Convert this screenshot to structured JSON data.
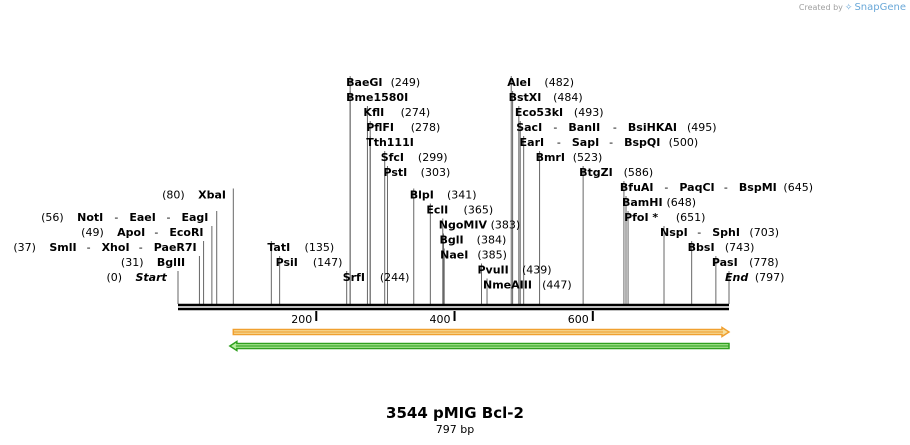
{
  "brand": {
    "created_by": "Created by",
    "name": "SnapGene",
    "logo_icon": "snapgene-logo-icon"
  },
  "title": "3544 pMIG Bcl-2",
  "length_label": "797 bp",
  "sequence": {
    "length": 797,
    "ticks": [
      200,
      400,
      600
    ]
  },
  "features": [
    {
      "name": "orange-feature-arrow",
      "start": 80,
      "end": 797,
      "direction": "forward",
      "color": "#f0a030",
      "fill": "#f7e0a0"
    },
    {
      "name": "green-feature-arrow",
      "start": 75,
      "end": 797,
      "direction": "reverse",
      "color": "#30a020",
      "fill": "#b8f0a0"
    }
  ],
  "sites": [
    {
      "row": 0,
      "bp": 0,
      "side": "left",
      "items": [
        {
          "name": "Start",
          "pos": "(0)",
          "italic": true
        }
      ]
    },
    {
      "row": 1,
      "bp": 31,
      "side": "left",
      "items": [
        {
          "name": "BglII",
          "pos": "(31)"
        }
      ]
    },
    {
      "row": 2,
      "bp": 37,
      "side": "left",
      "items": [
        {
          "name": "SmlI",
          "pos": "(37)"
        },
        {
          "name": "XhoI"
        },
        {
          "name": "PaeR7I"
        }
      ]
    },
    {
      "row": 3,
      "bp": 49,
      "side": "left",
      "items": [
        {
          "name": "ApoI",
          "pos": "(49)"
        },
        {
          "name": "EcoRI"
        }
      ]
    },
    {
      "row": 4,
      "bp": 56,
      "side": "left",
      "items": [
        {
          "name": "NotI",
          "pos": "(56)"
        },
        {
          "name": "EaeI"
        },
        {
          "name": "EagI"
        }
      ]
    },
    {
      "row": 5.5,
      "bp": 80,
      "side": "left",
      "items": [
        {
          "name": "XbaI",
          "pos": "(80)"
        }
      ]
    },
    {
      "row": 2,
      "bp": 135,
      "side": "right",
      "items": [
        {
          "name": "TatI",
          "pos": "(135)"
        }
      ]
    },
    {
      "row": 1,
      "bp": 147,
      "side": "right",
      "items": [
        {
          "name": "PsiI",
          "pos": "(147)"
        }
      ]
    },
    {
      "row": 0,
      "bp": 244,
      "side": "right",
      "items": [
        {
          "name": "SrfI",
          "pos": "(244)"
        }
      ]
    },
    {
      "row": 13,
      "bp": 249,
      "side": "right",
      "items": [
        {
          "name": "BaeGI",
          "pos": "(249)"
        }
      ]
    },
    {
      "row": 12,
      "bp": 249,
      "side": "right",
      "items": [
        {
          "name": "Bme1580I"
        }
      ]
    },
    {
      "row": 11,
      "bp": 274,
      "side": "right",
      "items": [
        {
          "name": "KflI",
          "pos": "(274)"
        }
      ]
    },
    {
      "row": 10,
      "bp": 278,
      "side": "right",
      "items": [
        {
          "name": "PflFI",
          "pos": "(278)"
        }
      ]
    },
    {
      "row": 9,
      "bp": 278,
      "side": "right",
      "items": [
        {
          "name": "Tth111I"
        }
      ]
    },
    {
      "row": 8,
      "bp": 299,
      "side": "right",
      "items": [
        {
          "name": "SfcI",
          "pos": "(299)"
        }
      ]
    },
    {
      "row": 7,
      "bp": 303,
      "side": "right",
      "items": [
        {
          "name": "PstI",
          "pos": "(303)"
        }
      ]
    },
    {
      "row": 5.5,
      "bp": 341,
      "side": "right",
      "items": [
        {
          "name": "BlpI",
          "pos": "(341)"
        }
      ]
    },
    {
      "row": 4.5,
      "bp": 365,
      "side": "right",
      "items": [
        {
          "name": "EclI",
          "pos": "(365)"
        }
      ]
    },
    {
      "row": 3.5,
      "bp": 383,
      "side": "right",
      "items": [
        {
          "name": "NgoMIV",
          "pos": "(383)"
        }
      ]
    },
    {
      "row": 2.5,
      "bp": 384,
      "side": "right",
      "items": [
        {
          "name": "BglI",
          "pos": "(384)"
        }
      ]
    },
    {
      "row": 1.5,
      "bp": 385,
      "side": "right",
      "items": [
        {
          "name": "NaeI",
          "pos": "(385)"
        }
      ]
    },
    {
      "row": 0.5,
      "bp": 439,
      "side": "right",
      "items": [
        {
          "name": "PvuII",
          "pos": "(439)"
        }
      ]
    },
    {
      "row": -0.5,
      "bp": 447,
      "side": "right",
      "items": [
        {
          "name": "NmeAIII",
          "pos": "(447)"
        }
      ]
    },
    {
      "row": 13,
      "bp": 482,
      "side": "right",
      "items": [
        {
          "name": "AleI",
          "pos": "(482)"
        }
      ]
    },
    {
      "row": 12,
      "bp": 484,
      "side": "right",
      "items": [
        {
          "name": "BstXI",
          "pos": "(484)"
        }
      ]
    },
    {
      "row": 11,
      "bp": 493,
      "side": "right",
      "items": [
        {
          "name": "Eco53kI",
          "pos": "(493)"
        }
      ]
    },
    {
      "row": 10,
      "bp": 495,
      "side": "right",
      "items": [
        {
          "name": "SacI"
        },
        {
          "name": "BanII"
        },
        {
          "name": "BsiHKAI",
          "pos": "(495)"
        }
      ]
    },
    {
      "row": 9,
      "bp": 500,
      "side": "right",
      "items": [
        {
          "name": "EarI"
        },
        {
          "name": "SapI"
        },
        {
          "name": "BspQI",
          "pos": "(500)"
        }
      ]
    },
    {
      "row": 8,
      "bp": 523,
      "side": "right",
      "items": [
        {
          "name": "BmrI",
          "pos": "(523)"
        }
      ]
    },
    {
      "row": 7,
      "bp": 586,
      "side": "right",
      "items": [
        {
          "name": "BtgZI",
          "pos": "(586)"
        }
      ]
    },
    {
      "row": 6,
      "bp": 645,
      "side": "right",
      "items": [
        {
          "name": "BfuAI"
        },
        {
          "name": "PaqCI"
        },
        {
          "name": "BspMI",
          "pos": "(645)"
        }
      ]
    },
    {
      "row": 5,
      "bp": 648,
      "side": "right",
      "items": [
        {
          "name": "BamHI",
          "pos": "(648)"
        }
      ]
    },
    {
      "row": 4,
      "bp": 651,
      "side": "right",
      "items": [
        {
          "name": "PfoI *",
          "pos": "(651)"
        }
      ]
    },
    {
      "row": 3,
      "bp": 703,
      "side": "right",
      "items": [
        {
          "name": "NspI"
        },
        {
          "name": "SphI",
          "pos": "(703)"
        }
      ]
    },
    {
      "row": 2,
      "bp": 743,
      "side": "right",
      "items": [
        {
          "name": "BbsI",
          "pos": "(743)"
        }
      ]
    },
    {
      "row": 1,
      "bp": 778,
      "side": "right",
      "items": [
        {
          "name": "PasI",
          "pos": "(778)"
        }
      ]
    },
    {
      "row": 0,
      "bp": 797,
      "side": "right",
      "items": [
        {
          "name": "End",
          "pos": "(797)",
          "italic": true
        }
      ]
    }
  ]
}
